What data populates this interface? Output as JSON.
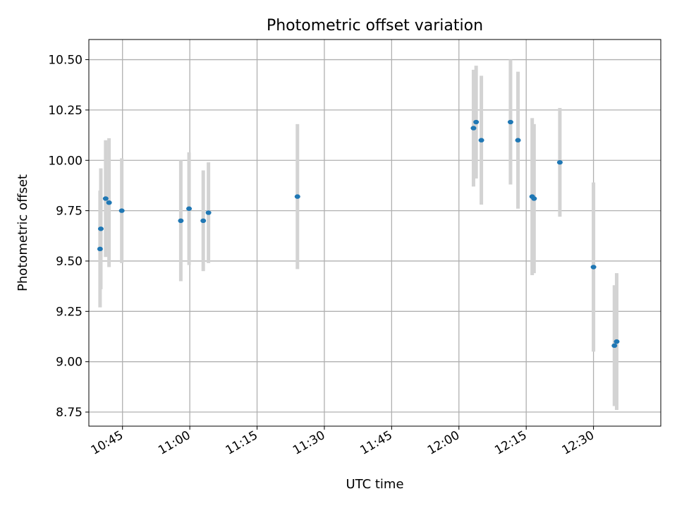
{
  "chart_data": {
    "type": "scatter",
    "title": "Photometric offset variation",
    "xlabel": "UTC time",
    "ylabel": "Photometric offset",
    "xlim": [
      "10:37:30",
      "12:45:00"
    ],
    "ylim": [
      8.68,
      10.6
    ],
    "x_ticks": [
      "10:45",
      "11:00",
      "11:15",
      "11:30",
      "11:45",
      "12:00",
      "12:15",
      "12:30"
    ],
    "y_ticks": [
      "8.75",
      "9.00",
      "9.25",
      "9.50",
      "9.75",
      "10.00",
      "10.25",
      "10.50"
    ],
    "grid": true,
    "colors": {
      "point": "#1f77b4",
      "errorbar": "#d3d3d3",
      "grid": "#b0b0b0"
    },
    "points": [
      {
        "x": "10:40:00",
        "y": 9.56,
        "err": 0.29
      },
      {
        "x": "10:40:10",
        "y": 9.66,
        "err": 0.3
      },
      {
        "x": "10:41:15",
        "y": 9.81,
        "err": 0.29
      },
      {
        "x": "10:42:00",
        "y": 9.79,
        "err": 0.32
      },
      {
        "x": "10:44:50",
        "y": 9.75,
        "err": 0.26
      },
      {
        "x": "10:58:00",
        "y": 9.7,
        "err": 0.3
      },
      {
        "x": "10:59:50",
        "y": 9.76,
        "err": 0.28
      },
      {
        "x": "11:03:00",
        "y": 9.7,
        "err": 0.25
      },
      {
        "x": "11:04:10",
        "y": 9.74,
        "err": 0.25
      },
      {
        "x": "11:24:00",
        "y": 9.82,
        "err": 0.36
      },
      {
        "x": "12:03:15",
        "y": 10.16,
        "err": 0.29
      },
      {
        "x": "12:03:50",
        "y": 10.19,
        "err": 0.28
      },
      {
        "x": "12:05:00",
        "y": 10.1,
        "err": 0.32
      },
      {
        "x": "12:11:30",
        "y": 10.19,
        "err": 0.31
      },
      {
        "x": "12:13:10",
        "y": 10.1,
        "err": 0.34
      },
      {
        "x": "12:16:20",
        "y": 9.82,
        "err": 0.39
      },
      {
        "x": "12:16:45",
        "y": 9.81,
        "err": 0.37
      },
      {
        "x": "12:22:30",
        "y": 9.99,
        "err": 0.27
      },
      {
        "x": "12:30:00",
        "y": 9.47,
        "err": 0.42
      },
      {
        "x": "12:34:40",
        "y": 9.08,
        "err": 0.3
      },
      {
        "x": "12:35:10",
        "y": 9.1,
        "err": 0.34
      }
    ]
  }
}
